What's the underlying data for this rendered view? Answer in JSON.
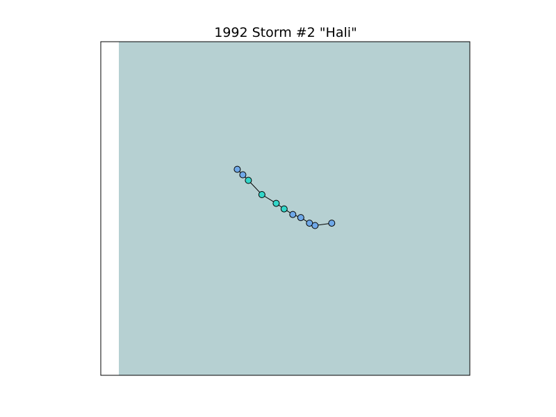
{
  "title": "1992 Storm #2 \"Hali\"",
  "colors": {
    "background": "#ffffff",
    "ocean": "#b6d0d2",
    "land_strip": "#ffffff",
    "frame": "#000000",
    "track_line": "#000000",
    "point_edge": "#000000"
  },
  "chart_data": {
    "type": "scatter",
    "title": "1992 Storm #2 \"Hali\"",
    "xlabel": "",
    "ylabel": "",
    "grid": false,
    "legend": "none",
    "track": [
      {
        "lon": -5.6,
        "lat": 11.1,
        "color": "#6fa8e8"
      },
      {
        "lon": -4.9,
        "lat": 10.4,
        "color": "#6fa8e8"
      },
      {
        "lon": -4.2,
        "lat": 9.7,
        "color": "#33d6c9"
      },
      {
        "lon": -2.5,
        "lat": 7.9,
        "color": "#33d6c9"
      },
      {
        "lon": -0.7,
        "lat": 6.8,
        "color": "#33d6c9"
      },
      {
        "lon": 0.3,
        "lat": 6.1,
        "color": "#33d6c9"
      },
      {
        "lon": 1.4,
        "lat": 5.4,
        "color": "#6fa8e8"
      },
      {
        "lon": 2.4,
        "lat": 5.0,
        "color": "#6fa8e8"
      },
      {
        "lon": 3.5,
        "lat": 4.3,
        "color": "#6fa8e8"
      },
      {
        "lon": 4.2,
        "lat": 4.0,
        "color": "#6fa8e8"
      },
      {
        "lon": 6.3,
        "lat": 4.3,
        "color": "#6fa8e8"
      }
    ],
    "xlim": [
      -22.8,
      23.7
    ],
    "ylim": [
      -14.9,
      27.2
    ]
  }
}
